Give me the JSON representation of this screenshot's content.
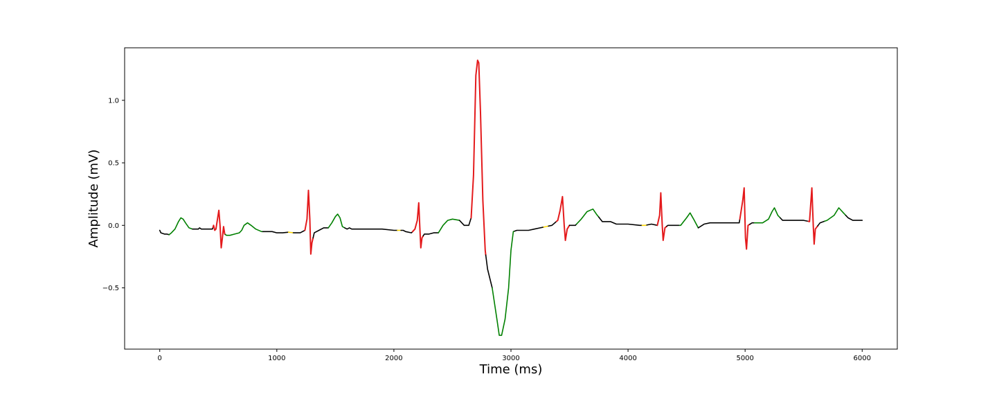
{
  "chart_data": {
    "type": "line",
    "title": "",
    "xlabel": "Time (ms)",
    "ylabel": "Amplitude (mV)",
    "xlim": [
      -300,
      6300
    ],
    "ylim": [
      -0.99,
      1.42
    ],
    "xticks": [
      0,
      1000,
      2000,
      3000,
      4000,
      5000,
      6000
    ],
    "xtick_labels": [
      "0",
      "1000",
      "2000",
      "3000",
      "4000",
      "5000",
      "6000"
    ],
    "yticks": [
      -0.5,
      0.0,
      0.5,
      1.0
    ],
    "ytick_labels": [
      "−0.5",
      "0.0",
      "0.5",
      "1.0"
    ],
    "grid": false,
    "legend": "none",
    "colors": {
      "baseline": "#000000",
      "p_wave": "#008000",
      "qrs": "#e41a1c",
      "t_wave": "#008000",
      "pr_marker": "#ffd700"
    },
    "signal": [
      [
        0,
        -0.04
      ],
      [
        10,
        -0.06
      ],
      [
        40,
        -0.07
      ],
      [
        60,
        -0.07
      ],
      [
        80,
        -0.075
      ],
      [
        100,
        -0.06
      ],
      [
        130,
        -0.03
      ],
      [
        160,
        0.03
      ],
      [
        180,
        0.06
      ],
      [
        200,
        0.05
      ],
      [
        220,
        0.02
      ],
      [
        250,
        -0.02
      ],
      [
        280,
        -0.03
      ],
      [
        330,
        -0.03
      ],
      [
        340,
        -0.02
      ],
      [
        355,
        -0.03
      ],
      [
        420,
        -0.03
      ],
      [
        450,
        -0.03
      ],
      [
        460,
        0.0
      ],
      [
        470,
        -0.04
      ],
      [
        480,
        -0.03
      ],
      [
        495,
        0.06
      ],
      [
        505,
        0.12
      ],
      [
        515,
        0.0
      ],
      [
        525,
        -0.18
      ],
      [
        535,
        -0.1
      ],
      [
        545,
        -0.01
      ],
      [
        555,
        -0.07
      ],
      [
        570,
        -0.08
      ],
      [
        600,
        -0.08
      ],
      [
        640,
        -0.07
      ],
      [
        680,
        -0.06
      ],
      [
        700,
        -0.04
      ],
      [
        720,
        0.0
      ],
      [
        750,
        0.02
      ],
      [
        780,
        0.0
      ],
      [
        820,
        -0.03
      ],
      [
        870,
        -0.05
      ],
      [
        920,
        -0.05
      ],
      [
        960,
        -0.05
      ],
      [
        1000,
        -0.06
      ],
      [
        1050,
        -0.06
      ],
      [
        1100,
        -0.055
      ],
      [
        1150,
        -0.06
      ],
      [
        1200,
        -0.06
      ],
      [
        1240,
        -0.04
      ],
      [
        1258,
        0.05
      ],
      [
        1270,
        0.28
      ],
      [
        1282,
        0.05
      ],
      [
        1290,
        -0.23
      ],
      [
        1300,
        -0.14
      ],
      [
        1320,
        -0.06
      ],
      [
        1360,
        -0.04
      ],
      [
        1400,
        -0.02
      ],
      [
        1440,
        -0.02
      ],
      [
        1470,
        0.02
      ],
      [
        1500,
        0.07
      ],
      [
        1520,
        0.09
      ],
      [
        1540,
        0.06
      ],
      [
        1560,
        -0.01
      ],
      [
        1580,
        -0.02
      ],
      [
        1600,
        -0.03
      ],
      [
        1620,
        -0.02
      ],
      [
        1640,
        -0.03
      ],
      [
        1700,
        -0.03
      ],
      [
        1800,
        -0.03
      ],
      [
        1900,
        -0.03
      ],
      [
        2000,
        -0.04
      ],
      [
        2080,
        -0.04
      ],
      [
        2100,
        -0.05
      ],
      [
        2150,
        -0.06
      ],
      [
        2180,
        -0.03
      ],
      [
        2200,
        0.04
      ],
      [
        2212,
        0.18
      ],
      [
        2222,
        -0.02
      ],
      [
        2230,
        -0.18
      ],
      [
        2240,
        -0.1
      ],
      [
        2260,
        -0.07
      ],
      [
        2300,
        -0.07
      ],
      [
        2340,
        -0.06
      ],
      [
        2380,
        -0.06
      ],
      [
        2420,
        0.0
      ],
      [
        2460,
        0.04
      ],
      [
        2500,
        0.05
      ],
      [
        2560,
        0.04
      ],
      [
        2600,
        0.0
      ],
      [
        2640,
        0.0
      ],
      [
        2660,
        0.06
      ],
      [
        2680,
        0.4
      ],
      [
        2700,
        1.2
      ],
      [
        2715,
        1.32
      ],
      [
        2725,
        1.3
      ],
      [
        2740,
        0.9
      ],
      [
        2760,
        0.2
      ],
      [
        2780,
        -0.2
      ],
      [
        2800,
        -0.35
      ],
      [
        2840,
        -0.5
      ],
      [
        2880,
        -0.75
      ],
      [
        2900,
        -0.88
      ],
      [
        2920,
        -0.88
      ],
      [
        2950,
        -0.75
      ],
      [
        2980,
        -0.5
      ],
      [
        3000,
        -0.2
      ],
      [
        3020,
        -0.05
      ],
      [
        3050,
        -0.04
      ],
      [
        3100,
        -0.04
      ],
      [
        3150,
        -0.04
      ],
      [
        3200,
        -0.03
      ],
      [
        3250,
        -0.02
      ],
      [
        3300,
        -0.01
      ],
      [
        3350,
        0.0
      ],
      [
        3400,
        0.04
      ],
      [
        3420,
        0.12
      ],
      [
        3440,
        0.23
      ],
      [
        3455,
        0.0
      ],
      [
        3465,
        -0.12
      ],
      [
        3480,
        -0.03
      ],
      [
        3500,
        0.0
      ],
      [
        3550,
        0.0
      ],
      [
        3600,
        0.05
      ],
      [
        3650,
        0.11
      ],
      [
        3700,
        0.13
      ],
      [
        3730,
        0.09
      ],
      [
        3780,
        0.03
      ],
      [
        3850,
        0.03
      ],
      [
        3900,
        0.01
      ],
      [
        4000,
        0.01
      ],
      [
        4100,
        0.0
      ],
      [
        4150,
        0.0
      ],
      [
        4200,
        0.01
      ],
      [
        4250,
        0.0
      ],
      [
        4270,
        0.08
      ],
      [
        4280,
        0.26
      ],
      [
        4292,
        0.0
      ],
      [
        4300,
        -0.12
      ],
      [
        4315,
        -0.02
      ],
      [
        4340,
        0.0
      ],
      [
        4400,
        0.0
      ],
      [
        4450,
        0.0
      ],
      [
        4500,
        0.06
      ],
      [
        4530,
        0.1
      ],
      [
        4560,
        0.05
      ],
      [
        4600,
        -0.02
      ],
      [
        4650,
        0.01
      ],
      [
        4700,
        0.02
      ],
      [
        4800,
        0.02
      ],
      [
        4900,
        0.02
      ],
      [
        4950,
        0.02
      ],
      [
        4980,
        0.2
      ],
      [
        4992,
        0.3
      ],
      [
        5003,
        -0.1
      ],
      [
        5012,
        -0.19
      ],
      [
        5025,
        0.0
      ],
      [
        5060,
        0.02
      ],
      [
        5100,
        0.02
      ],
      [
        5150,
        0.02
      ],
      [
        5200,
        0.05
      ],
      [
        5230,
        0.11
      ],
      [
        5250,
        0.14
      ],
      [
        5280,
        0.08
      ],
      [
        5320,
        0.04
      ],
      [
        5400,
        0.04
      ],
      [
        5500,
        0.04
      ],
      [
        5550,
        0.03
      ],
      [
        5570,
        0.3
      ],
      [
        5582,
        0.0
      ],
      [
        5590,
        -0.15
      ],
      [
        5600,
        -0.03
      ],
      [
        5640,
        0.02
      ],
      [
        5700,
        0.04
      ],
      [
        5760,
        0.08
      ],
      [
        5800,
        0.14
      ],
      [
        5840,
        0.1
      ],
      [
        5880,
        0.06
      ],
      [
        5920,
        0.04
      ],
      [
        6000,
        0.04
      ]
    ],
    "segments": [
      {
        "name": "baseline",
        "x": [
          0,
          80
        ]
      },
      {
        "name": "p_wave",
        "x": [
          80,
          280
        ]
      },
      {
        "name": "baseline",
        "x": [
          280,
          455
        ]
      },
      {
        "name": "qrs",
        "x": [
          455,
          560
        ]
      },
      {
        "name": "p_wave",
        "x": [
          560,
          880
        ]
      },
      {
        "name": "baseline",
        "x": [
          880,
          1100
        ]
      },
      {
        "name": "pr_marker",
        "x": [
          1100,
          1140
        ]
      },
      {
        "name": "baseline",
        "x": [
          1140,
          1240
        ]
      },
      {
        "name": "qrs",
        "x": [
          1240,
          1310
        ]
      },
      {
        "name": "baseline",
        "x": [
          1310,
          1440
        ]
      },
      {
        "name": "p_wave",
        "x": [
          1440,
          1580
        ]
      },
      {
        "name": "baseline",
        "x": [
          1580,
          2030
        ]
      },
      {
        "name": "pr_marker",
        "x": [
          2030,
          2060
        ]
      },
      {
        "name": "baseline",
        "x": [
          2060,
          2160
        ]
      },
      {
        "name": "qrs",
        "x": [
          2160,
          2250
        ]
      },
      {
        "name": "baseline",
        "x": [
          2250,
          2380
        ]
      },
      {
        "name": "p_wave",
        "x": [
          2380,
          2560
        ]
      },
      {
        "name": "baseline",
        "x": [
          2560,
          2660
        ]
      },
      {
        "name": "qrs",
        "x": [
          2660,
          2785
        ]
      },
      {
        "name": "baseline",
        "x": [
          2785,
          2840
        ]
      },
      {
        "name": "t_wave",
        "x": [
          2840,
          3030
        ]
      },
      {
        "name": "baseline",
        "x": [
          3030,
          3280
        ]
      },
      {
        "name": "pr_marker",
        "x": [
          3280,
          3320
        ]
      },
      {
        "name": "baseline",
        "x": [
          3320,
          3390
        ]
      },
      {
        "name": "qrs",
        "x": [
          3390,
          3500
        ]
      },
      {
        "name": "baseline",
        "x": [
          3500,
          3560
        ]
      },
      {
        "name": "p_wave",
        "x": [
          3560,
          3750
        ]
      },
      {
        "name": "baseline",
        "x": [
          3750,
          4120
        ]
      },
      {
        "name": "pr_marker",
        "x": [
          4120,
          4160
        ]
      },
      {
        "name": "baseline",
        "x": [
          4160,
          4250
        ]
      },
      {
        "name": "qrs",
        "x": [
          4250,
          4330
        ]
      },
      {
        "name": "baseline",
        "x": [
          4330,
          4440
        ]
      },
      {
        "name": "p_wave",
        "x": [
          4440,
          4600
        ]
      },
      {
        "name": "baseline",
        "x": [
          4600,
          4955
        ]
      },
      {
        "name": "qrs",
        "x": [
          4955,
          5040
        ]
      },
      {
        "name": "baseline",
        "x": [
          5040,
          5080
        ]
      },
      {
        "name": "p_wave",
        "x": [
          5080,
          5300
        ]
      },
      {
        "name": "baseline",
        "x": [
          5300,
          5540
        ]
      },
      {
        "name": "qrs",
        "x": [
          5540,
          5620
        ]
      },
      {
        "name": "baseline",
        "x": [
          5620,
          5680
        ]
      },
      {
        "name": "p_wave",
        "x": [
          5680,
          5860
        ]
      },
      {
        "name": "baseline",
        "x": [
          5860,
          6000
        ]
      }
    ]
  }
}
